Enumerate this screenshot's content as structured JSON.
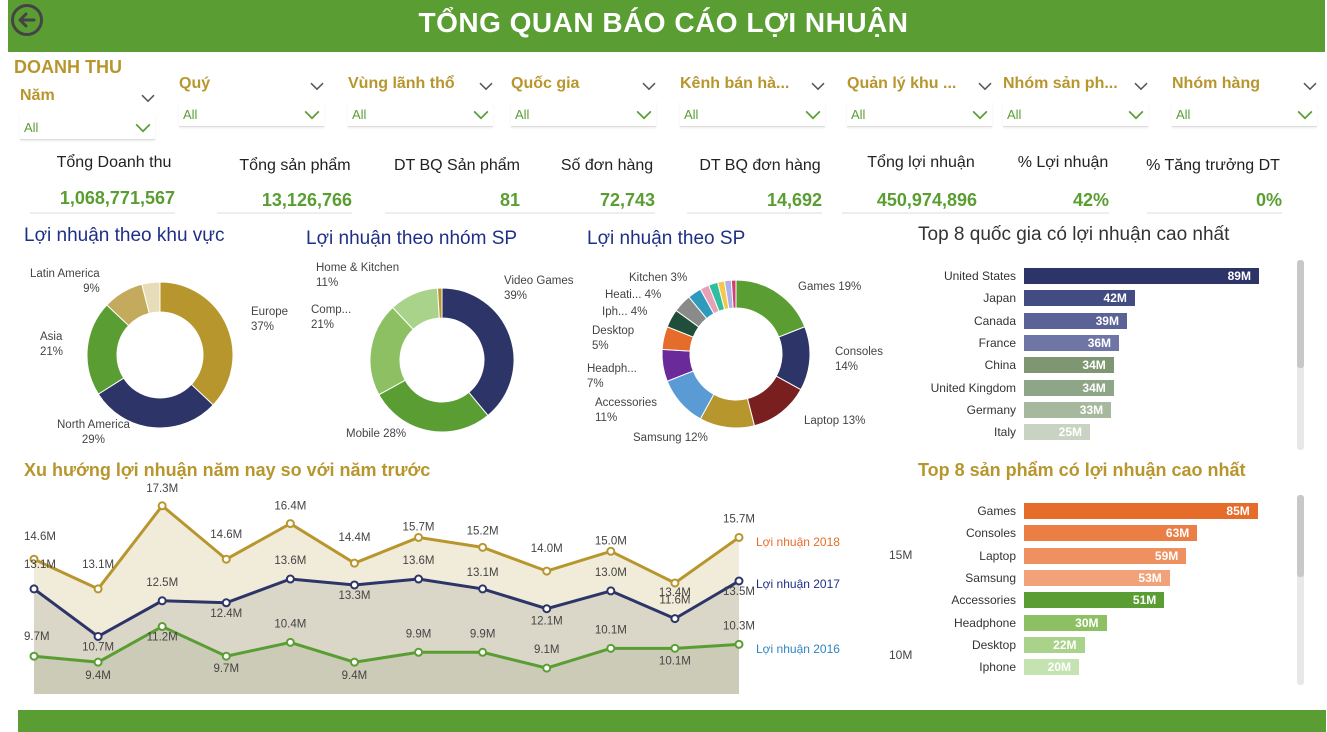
{
  "header": {
    "title": "TỔNG QUAN BÁO CÁO LỢI NHUẬN",
    "back_icon": "arrow-left-circle-icon"
  },
  "section_label": "DOANH THU",
  "colors": {
    "green": "#5a9e33",
    "gold": "#b8962e",
    "navy": "#2c3468"
  },
  "filters": [
    {
      "label": "Năm",
      "value": "All"
    },
    {
      "label": "Quý",
      "value": "All"
    },
    {
      "label": "Vùng lãnh thổ",
      "value": "All"
    },
    {
      "label": "Quốc gia",
      "value": "All"
    },
    {
      "label": "Kênh bán hà...",
      "value": "All"
    },
    {
      "label": "Quản lý khu ...",
      "value": "All"
    },
    {
      "label": "Nhóm sản ph...",
      "value": "All"
    },
    {
      "label": "Nhóm hàng",
      "value": "All"
    }
  ],
  "kpis": [
    {
      "label": "Tổng Doanh thu",
      "value": "1,068,771,567"
    },
    {
      "label": "Tổng sản phẩm",
      "value": "13,126,766"
    },
    {
      "label": "DT BQ Sản phẩm",
      "value": "81"
    },
    {
      "label": "Số đơn hàng",
      "value": "72,743"
    },
    {
      "label": "DT BQ đơn hàng",
      "value": "14,692"
    },
    {
      "label": "Tổng lợi nhuận",
      "value": "450,974,896"
    },
    {
      "label": "% Lợi nhuận",
      "value": "42%"
    },
    {
      "label": "% Tăng trưởng DT",
      "value": "0%"
    }
  ],
  "chart_titles": {
    "region": "Lợi nhuận theo khu vực",
    "group": "Lợi nhuận theo nhóm SP",
    "product": "Lợi nhuận theo SP",
    "top_country": "Top 8 quốc gia có lợi nhuận cao nhất",
    "trend": "Xu hướng lợi nhuận năm nay so với năm trước",
    "top_product": "Top 8 sản phẩm có lợi nhuận cao nhất"
  },
  "chart_data": [
    {
      "type": "pie",
      "title": "Lợi nhuận theo khu vực",
      "slices": [
        {
          "label": "Europe",
          "value": 37,
          "color": "#b8962e"
        },
        {
          "label": "North America",
          "value": 29,
          "color": "#2c3468"
        },
        {
          "label": "Asia",
          "value": 21,
          "color": "#5a9e33"
        },
        {
          "label": "Latin America",
          "value": 9,
          "color": "#c4aa5c"
        },
        {
          "label": "",
          "value": 4,
          "color": "#e6dcb8"
        }
      ],
      "labels": [
        {
          "line1": "Europe",
          "line2": "37%"
        },
        {
          "line1": "North America",
          "line2": "29%"
        },
        {
          "line1": "Asia",
          "line2": "21%"
        },
        {
          "line1": "Latin America",
          "line2": "9%"
        }
      ]
    },
    {
      "type": "pie",
      "title": "Lợi nhuận theo nhóm SP",
      "slices": [
        {
          "label": "Video Games",
          "value": 39,
          "color": "#2c3468"
        },
        {
          "label": "Mobile",
          "value": 28,
          "color": "#5a9e33"
        },
        {
          "label": "Comp...",
          "value": 21,
          "color": "#8cc063"
        },
        {
          "label": "Home & Kitchen",
          "value": 11,
          "color": "#a9d28a"
        },
        {
          "label": "",
          "value": 1,
          "color": "#b8962e"
        }
      ],
      "labels": [
        {
          "line1": "Video Games",
          "line2": "39%"
        },
        {
          "line1": "Mobile 28%",
          "line2": ""
        },
        {
          "line1": "Comp...",
          "line2": "21%"
        },
        {
          "line1": "Home & Kitchen",
          "line2": "11%"
        }
      ]
    },
    {
      "type": "pie",
      "title": "Lợi nhuận theo SP",
      "slices": [
        {
          "label": "Games",
          "value": 19,
          "color": "#5a9e33"
        },
        {
          "label": "Consoles",
          "value": 14,
          "color": "#2c3468"
        },
        {
          "label": "Laptop",
          "value": 13,
          "color": "#7a1f1f"
        },
        {
          "label": "Samsung",
          "value": 12,
          "color": "#b8962e"
        },
        {
          "label": "Accessories",
          "value": 11,
          "color": "#5b9bd5"
        },
        {
          "label": "Headph...",
          "value": 7,
          "color": "#6a2a9a"
        },
        {
          "label": "Desktop",
          "value": 5,
          "color": "#e66c2c"
        },
        {
          "label": "Iph...",
          "value": 4,
          "color": "#1f4e3a"
        },
        {
          "label": "Heati...",
          "value": 4,
          "color": "#8a8a8a"
        },
        {
          "label": "Kitchen",
          "value": 3,
          "color": "#2e9bbd"
        },
        {
          "label": "",
          "value": 2,
          "color": "#e8a0b8"
        },
        {
          "label": "",
          "value": 2,
          "color": "#2ebfa0"
        },
        {
          "label": "",
          "value": 1.5,
          "color": "#f2c94c"
        },
        {
          "label": "",
          "value": 1.5,
          "color": "#b0b0e8"
        },
        {
          "label": "",
          "value": 1,
          "color": "#d04070"
        }
      ],
      "labels": [
        {
          "line1": "Games 19%",
          "line2": ""
        },
        {
          "line1": "Consoles",
          "line2": "14%"
        },
        {
          "line1": "Laptop 13%",
          "line2": ""
        },
        {
          "line1": "Samsung 12%",
          "line2": ""
        },
        {
          "line1": "Accessories",
          "line2": "11%"
        },
        {
          "line1": "Headph...",
          "line2": "7%"
        },
        {
          "line1": "Desktop",
          "line2": "5%"
        },
        {
          "line1": "Iph... 4%",
          "line2": ""
        },
        {
          "line1": "Heati... 4%",
          "line2": ""
        },
        {
          "line1": "Kitchen 3%",
          "line2": ""
        }
      ]
    },
    {
      "type": "bar",
      "title": "Top 8 quốc gia có lợi nhuận cao nhất",
      "categories": [
        "United States",
        "Japan",
        "Canada",
        "France",
        "China",
        "United Kingdom",
        "Germany",
        "Italy"
      ],
      "values": [
        89,
        42,
        39,
        36,
        34,
        34,
        33,
        25
      ],
      "value_labels": [
        "89M",
        "42M",
        "39M",
        "36M",
        "34M",
        "34M",
        "33M",
        "25M"
      ],
      "colors": [
        "#2c3468",
        "#434c82",
        "#5a6296",
        "#6f76a6",
        "#7f9673",
        "#8fa588",
        "#a6b89e",
        "#c8d3c1"
      ]
    },
    {
      "type": "line",
      "title": "Xu hướng lợi nhuận năm nay so với năm trước",
      "series": [
        {
          "name": "Lợi nhuận 2018",
          "color": "#b8962e",
          "label_color": "#e66c2c",
          "values": [
            14.6,
            13.1,
            17.3,
            14.6,
            16.4,
            14.4,
            15.7,
            15.2,
            14.0,
            15.0,
            13.4,
            15.7
          ],
          "labels": [
            "14.6M",
            "13.1M",
            "17.3M",
            "14.6M",
            "16.4M",
            "14.4M",
            "15.7M",
            "15.2M",
            "14.0M",
            "15.0M",
            "13.4M",
            "15.7M"
          ]
        },
        {
          "name": "Lợi nhuận 2017",
          "color": "#2c3468",
          "label_color": "#1e2f87",
          "values": [
            13.1,
            10.7,
            12.5,
            12.4,
            13.6,
            13.3,
            13.6,
            13.1,
            12.1,
            13.0,
            11.6,
            13.5
          ],
          "labels": [
            "13.1M",
            "10.7M",
            "12.5M",
            "12.4M",
            "13.6M",
            "13.3M",
            "13.6M",
            "13.1M",
            "12.1M",
            "13.0M",
            "11.6M",
            "13.5M"
          ]
        },
        {
          "name": "Lợi nhuận 2016",
          "color": "#5a9e33",
          "label_color": "#2e86c1",
          "values": [
            9.7,
            9.4,
            11.2,
            9.7,
            10.4,
            9.4,
            9.9,
            9.9,
            9.1,
            10.1,
            10.1,
            10.3
          ],
          "labels": [
            "9.7M",
            "9.4M",
            "11.2M",
            "9.7M",
            "10.4M",
            "9.4M",
            "9.9M",
            "9.9M",
            "9.1M",
            "10.1M",
            "10.1M",
            "10.3M"
          ]
        }
      ],
      "axis_ticks": [
        "15M",
        "10M"
      ]
    },
    {
      "type": "bar",
      "title": "Top 8 sản phẩm có lợi nhuận cao nhất",
      "categories": [
        "Games",
        "Consoles",
        "Laptop",
        "Samsung",
        "Accessories",
        "Headphone",
        "Desktop",
        "Iphone"
      ],
      "values": [
        85,
        63,
        59,
        53,
        51,
        30,
        22,
        20
      ],
      "value_labels": [
        "85M",
        "63M",
        "59M",
        "53M",
        "51M",
        "30M",
        "22M",
        "20M"
      ],
      "colors": [
        "#e66c2c",
        "#ea7e45",
        "#ee905f",
        "#f2a27a",
        "#5a9e33",
        "#8cc063",
        "#a9d28a",
        "#c5e3b0"
      ]
    }
  ]
}
